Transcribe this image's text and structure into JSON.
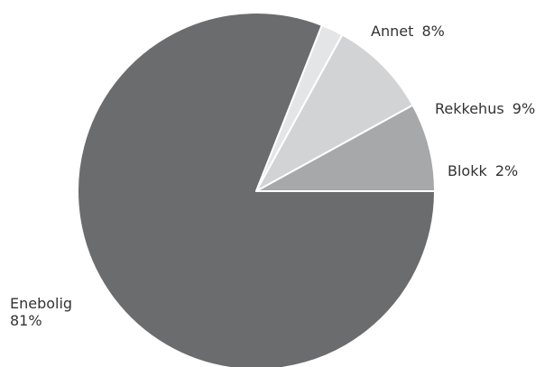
{
  "chart_data": {
    "type": "pie",
    "title": "",
    "slices": [
      {
        "label": "Enebolig",
        "value": 81,
        "display": "81%",
        "color": "#6b6c6e"
      },
      {
        "label": "Annet",
        "value": 8,
        "display": "8%",
        "color": "#a7a8aa"
      },
      {
        "label": "Rekkehus",
        "value": 9,
        "display": "9%",
        "color": "#d2d3d5"
      },
      {
        "label": "Blokk",
        "value": 2,
        "display": "2%",
        "color": "#e4e5e6"
      }
    ],
    "legend": "none",
    "labels": "outside"
  }
}
